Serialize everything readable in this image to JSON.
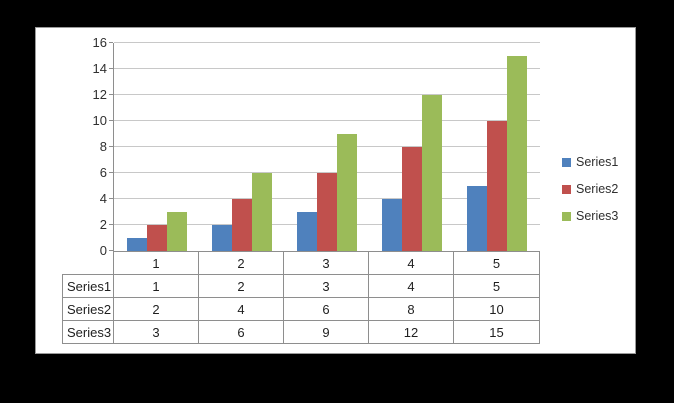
{
  "chart_data": {
    "type": "bar",
    "title": "",
    "categories": [
      "1",
      "2",
      "3",
      "4",
      "5"
    ],
    "series": [
      {
        "name": "Series1",
        "color": "#4F81BD",
        "values": [
          1,
          2,
          3,
          4,
          5
        ]
      },
      {
        "name": "Series2",
        "color": "#C0504D",
        "values": [
          2,
          4,
          6,
          8,
          10
        ]
      },
      {
        "name": "Series3",
        "color": "#9BBB59",
        "values": [
          3,
          6,
          9,
          12,
          15
        ]
      }
    ],
    "xlabel": "",
    "ylabel": "",
    "ylim": [
      0,
      16
    ],
    "yticks": [
      0,
      2,
      4,
      6,
      8,
      10,
      12,
      14,
      16
    ],
    "grid": "horizontal-only",
    "legend_position": "right",
    "legend_labels": [
      "Series1",
      "Series2",
      "Series3"
    ],
    "data_table": {
      "column_headers": [
        "1",
        "2",
        "3",
        "4",
        "5"
      ],
      "row_headers": [
        "Series1",
        "Series2",
        "Series3"
      ],
      "rows": [
        [
          1,
          2,
          3,
          4,
          5
        ],
        [
          2,
          4,
          6,
          8,
          10
        ],
        [
          3,
          6,
          9,
          12,
          15
        ]
      ]
    },
    "colors": {
      "page_bg": "#000000",
      "plot_bg": "#FFFFFF",
      "gridline": "#C8C8C8",
      "axis": "#8E8E8E",
      "text": "#303030"
    }
  }
}
